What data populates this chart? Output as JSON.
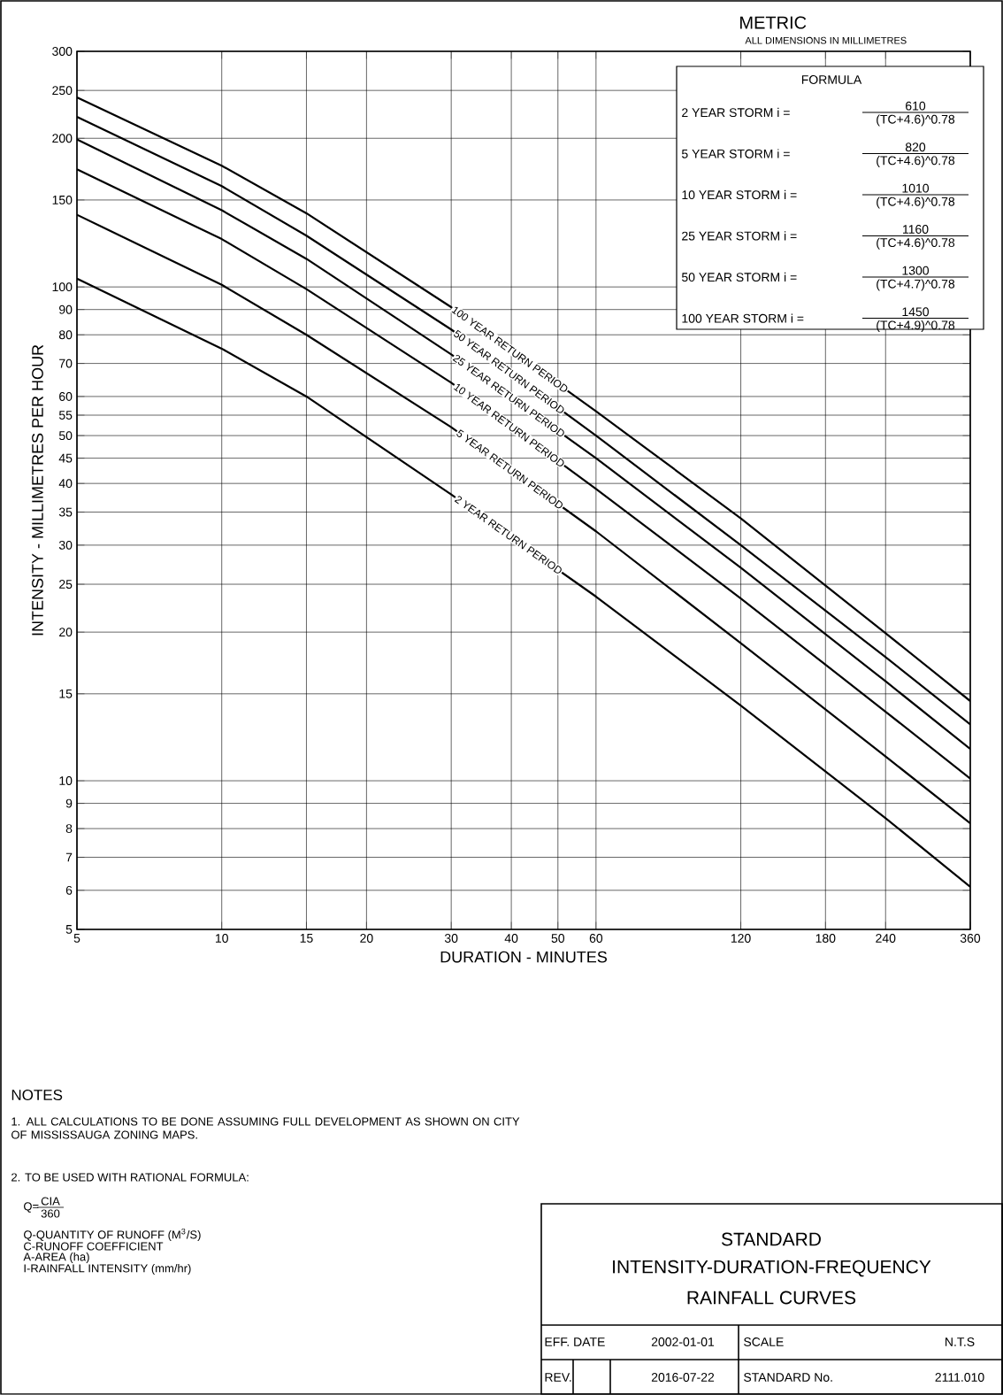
{
  "chart_data": {
    "type": "line",
    "title": "METRIC",
    "subtitle": "ALL DIMENSIONS IN MILLIMETRES",
    "xlabel": "DURATION - MINUTES",
    "ylabel": "INTENSITY - MILLIMETRES PER HOUR",
    "x": [
      5,
      10,
      15,
      30,
      60,
      120,
      240,
      360
    ],
    "series": [
      {
        "name": "2 YEAR RETURN PERIOD",
        "color": "#000000",
        "values": [
          104,
          75,
          60,
          38,
          23.6,
          14.2,
          8.4,
          6.1
        ]
      },
      {
        "name": "5 YEAR RETURN PERIOD",
        "color": "#000000",
        "values": [
          140,
          101,
          80,
          52,
          32,
          19,
          11.2,
          8.2
        ]
      },
      {
        "name": "10 YEAR RETURN PERIOD",
        "color": "#000000",
        "values": [
          173,
          125,
          99,
          64,
          39,
          23.4,
          13.8,
          10.1
        ]
      },
      {
        "name": "25 YEAR RETURN PERIOD",
        "color": "#000000",
        "values": [
          199,
          143,
          114,
          73,
          45,
          27,
          15.9,
          11.6
        ]
      },
      {
        "name": "50 YEAR RETURN PERIOD",
        "color": "#000000",
        "values": [
          221,
          160,
          127,
          82,
          50,
          30,
          17.8,
          13
        ]
      },
      {
        "name": "100 YEAR RETURN PERIOD",
        "color": "#000000",
        "values": [
          242,
          176,
          141,
          91,
          56,
          34,
          19.9,
          14.5
        ]
      }
    ],
    "log": "xy",
    "grid": true,
    "xlim": [
      5,
      360
    ],
    "xticks": [
      5,
      10,
      15,
      20,
      30,
      40,
      50,
      60,
      120,
      180,
      240,
      360
    ],
    "ylim": [
      5,
      300
    ],
    "yticks": [
      5,
      6,
      7,
      8,
      9,
      10,
      15,
      20,
      25,
      30,
      35,
      40,
      45,
      50,
      55,
      60,
      70,
      80,
      90,
      100,
      150,
      200,
      250,
      300
    ],
    "annotations": [
      "FORMULA",
      "2 YEAR STORM i =",
      "610",
      "(TC+4.6)^0.78",
      "5 YEAR STORM i =",
      "820",
      "(TC+4.6)^0.78",
      "10 YEAR STORM i =",
      "1010",
      "(TC+4.6)^0.78",
      "25 YEAR STORM i =",
      "1160",
      "(TC+4.6)^0.78",
      "50 YEAR STORM i =",
      "1300",
      "(TC+4.7)^0.78",
      "100 YEAR STORM i =",
      "1450",
      "(TC+4.9)^0.78",
      "NOTES",
      "1. ALL CALCULATIONS TO BE DONE ASSUMING FULL DEVELOPMENT AS SHOWN ON CITY OF MISSISSAUGA ZONING MAPS.",
      "2. TO BE USED WITH RATIONAL FORMULA:",
      "Q=",
      "CIA",
      "360",
      "Q-QUANTITY OF RUNOFF (M$^{3}$/S)",
      "C-RUNOFF COEFFICIENT",
      "A-AREA (ha)",
      "I-RAINFALL INTENSITY (mm/hr)",
      "STANDARD",
      "INTENSITY-DURATION-FREQUENCY",
      "RAINFALL CURVES",
      "EFF. DATE",
      "2002-01-01",
      "SCALE",
      "N.T.S",
      "REV.",
      "2016-07-22",
      "STANDARD No.",
      "2111.010"
    ]
  }
}
